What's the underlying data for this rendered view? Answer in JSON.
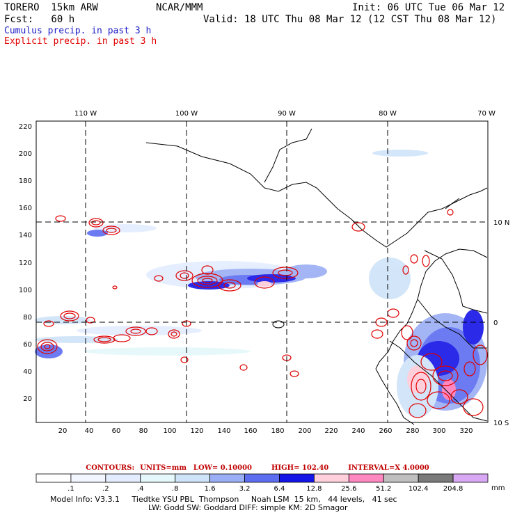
{
  "header": {
    "model": "TORERO  15km ARW",
    "org": "NCAR/MMM",
    "init": "Init: 06 UTC Tue 06 Mar 12",
    "fcst": "Fcst:   60 h",
    "valid": "Valid: 18 UTC Thu 08 Mar 12 (12 CST Thu 08 Mar 12)",
    "legend_cumulus": "Cumulus precip. in past 3 h",
    "legend_explicit": "Explicit precip. in past 3 h"
  },
  "colors": {
    "cumulus": "#1c1cc8",
    "explicit": "#e00000",
    "contour": "#e00000",
    "coast": "#000000"
  },
  "axes": {
    "lon_labels": [
      "110 W",
      "100 W",
      "90 W",
      "80 W",
      "70 W"
    ],
    "lat_labels": [
      "10 N",
      "0",
      "10 S"
    ],
    "left_ticks": [
      "220",
      "200",
      "180",
      "160",
      "140",
      "120",
      "100",
      "80",
      "60",
      "40",
      "20"
    ],
    "bottom_ticks": [
      "20",
      "40",
      "60",
      "80",
      "100",
      "120",
      "140",
      "160",
      "180",
      "200",
      "220",
      "240",
      "260",
      "280",
      "300",
      "320"
    ]
  },
  "contour_info": {
    "contours": "CONTOURS:",
    "units": "UNITS=mm",
    "low": "LOW= 0.10000",
    "high": "HIGH= 102.40",
    "interval": "INTERVAL=X  4.0000"
  },
  "colorbar": {
    "labels": [
      ".1",
      ".2",
      ".4",
      ".8",
      "1.6",
      "3.2",
      "6.4",
      "12.8",
      "25.6",
      "51.2",
      "102.4",
      "204.8"
    ],
    "unit": "mm",
    "colors": [
      "#ffffff",
      "#f2f6ff",
      "#e3edff",
      "#e5f8fb",
      "#cfe3f8",
      "#9aaef5",
      "#5d6df0",
      "#1414e6",
      "#ffd0dc",
      "#ff88c0",
      "#bfbfbf",
      "#7a7a7a",
      "#d8a8f5"
    ]
  },
  "footer": {
    "line1": "Model Info: V3.3.1     Tiedtke YSU PBL  Thompson     Noah LSM  15 km,   44 levels,   41 sec",
    "line2": "LW: Godd SW: Goddard DIFF: simple KM: 2D Smagor"
  }
}
